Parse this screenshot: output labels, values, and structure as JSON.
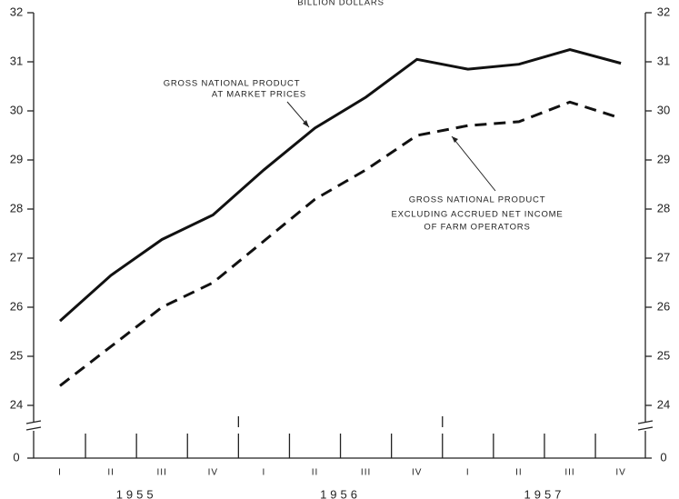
{
  "chart_data": {
    "type": "line",
    "title": "BILLION DOLLARS",
    "categories": [
      "I",
      "II",
      "III",
      "IV",
      "I",
      "II",
      "III",
      "IV",
      "I",
      "II",
      "III",
      "IV"
    ],
    "x_groups": [
      "1955",
      "1956",
      "1957"
    ],
    "series": [
      {
        "label": [
          "GROSS NATIONAL PRODUCT",
          "AT MARKET PRICES"
        ],
        "color": "#111111",
        "dash": false,
        "values": [
          25.72,
          26.65,
          27.38,
          27.88,
          28.8,
          29.65,
          30.28,
          31.05,
          30.85,
          30.95,
          31.25,
          30.97
        ]
      },
      {
        "label": [
          "GROSS NATIONAL PRODUCT",
          "EXCLUDING ACCRUED NET INCOME",
          "OF FARM OPERATORS"
        ],
        "color": "#111111",
        "dash": true,
        "values": [
          24.4,
          25.2,
          26.0,
          26.5,
          27.35,
          28.2,
          28.8,
          29.5,
          29.7,
          29.78,
          30.18,
          29.85
        ]
      }
    ],
    "ylim": [
      24,
      32
    ],
    "yticks": [
      0,
      24,
      25,
      26,
      27,
      28,
      29,
      30,
      31,
      32
    ],
    "y_break": true
  }
}
